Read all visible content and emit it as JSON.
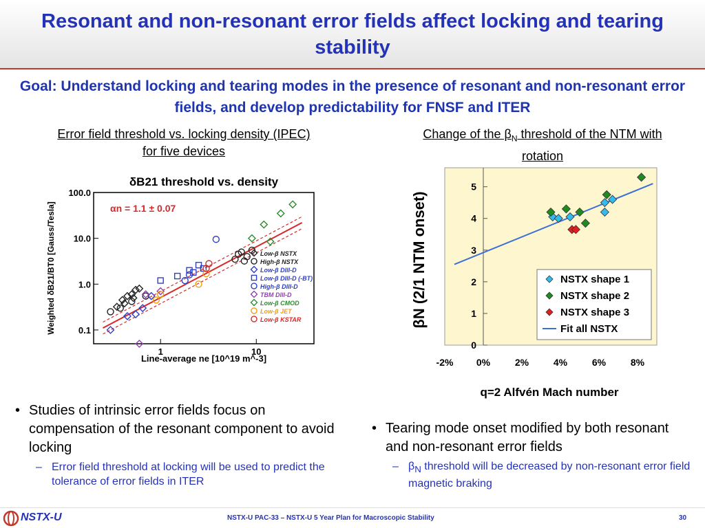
{
  "slide": {
    "title": "Resonant and non-resonant error fields affect locking and tearing stability",
    "goal": "Goal: Understand locking and tearing modes in the presence of resonant and non-resonant error fields, and develop predictability for FNSF and ITER"
  },
  "left": {
    "caption": "Error field threshold vs. locking density (IPEC) for five devices",
    "bullet": "Studies of intrinsic error fields focus on compensation of the resonant component to avoid locking",
    "sub_bullet": "Error field threshold at locking will be used to predict the tolerance of error fields in ITER"
  },
  "right": {
    "caption_prefix": "Change of the β",
    "caption_sub": "N",
    "caption_suffix": " threshold of the NTM with rotation",
    "bullet": "Tearing mode onset modified by both resonant and non-resonant error fields",
    "sub_prefix": "β",
    "sub_sub": "N",
    "sub_suffix": " threshold will be decreased by non-resonant error field magnetic braking"
  },
  "bullet_glyph": "•",
  "dash_glyph": "–",
  "footer": {
    "logo": "NSTX-U",
    "text": "NSTX-U PAC-33 – NSTX-U 5 Year Plan for Macroscopic Stability",
    "page": "30"
  },
  "chart_data": [
    {
      "type": "scatter",
      "scale": "log-log",
      "title": "δB21 threshold vs. density",
      "annotation": "αn = 1.1 ± 0.07",
      "xlabel": "Line-average ne [10^19 m^-3]",
      "ylabel": "Weighted δB21/BT0 [Gauss/Tesla]",
      "xlim": [
        0.2,
        40
      ],
      "ylim": [
        0.05,
        100
      ],
      "x_ticks": [
        "1",
        "10"
      ],
      "y_ticks": [
        "100.0",
        "10.0",
        "1.0",
        "0.1"
      ],
      "fit": {
        "x": [
          0.25,
          30
        ],
        "y": [
          0.11,
          22
        ]
      },
      "series": [
        {
          "name": "Low-β NSTX",
          "marker": "diamond-open",
          "color": "#222222",
          "points": [
            [
              0.35,
              0.32
            ],
            [
              0.4,
              0.45
            ],
            [
              0.45,
              0.55
            ],
            [
              0.5,
              0.6
            ],
            [
              0.55,
              0.75
            ],
            [
              0.6,
              0.8
            ],
            [
              0.42,
              0.38
            ],
            [
              0.52,
              0.5
            ]
          ]
        },
        {
          "name": "High-β NSTX",
          "marker": "circle-open",
          "color": "#222222",
          "points": [
            [
              0.3,
              0.25
            ],
            [
              0.38,
              0.3
            ],
            [
              0.5,
              0.42
            ],
            [
              0.7,
              0.55
            ],
            [
              6,
              3.5
            ],
            [
              6.5,
              4.5
            ],
            [
              7,
              5.0
            ],
            [
              7.5,
              3.2
            ],
            [
              8,
              4.0
            ],
            [
              9,
              5.5
            ]
          ]
        },
        {
          "name": "Low-β DIII-D",
          "marker": "diamond-open",
          "color": "#2e3fc8",
          "points": [
            [
              0.3,
              0.1
            ],
            [
              0.45,
              0.2
            ],
            [
              0.55,
              0.22
            ],
            [
              0.65,
              0.3
            ],
            [
              0.8,
              0.55
            ]
          ]
        },
        {
          "name": "Low-β DIII-D (-BT)",
          "marker": "square-open",
          "color": "#2e3fc8",
          "points": [
            [
              1.0,
              1.2
            ],
            [
              1.5,
              1.5
            ],
            [
              2.0,
              2.0
            ],
            [
              2.2,
              1.8
            ],
            [
              2.5,
              2.6
            ],
            [
              2.8,
              2.2
            ]
          ]
        },
        {
          "name": "High-β DIII-D",
          "marker": "circle-open",
          "color": "#2e3fc8",
          "points": [
            [
              3.8,
              9.5
            ],
            [
              1.8,
              1.2
            ],
            [
              2.0,
              1.6
            ]
          ]
        },
        {
          "name": "TBM DIII-D",
          "marker": "diamond-open",
          "color": "#8e44ad",
          "points": [
            [
              0.6,
              0.05
            ],
            [
              0.7,
              0.6
            ],
            [
              1.0,
              0.7
            ]
          ]
        },
        {
          "name": "Low-β CMOD",
          "marker": "diamond-open",
          "color": "#2e8b2e",
          "points": [
            [
              9,
              10
            ],
            [
              12,
              20
            ],
            [
              18,
              35
            ],
            [
              24,
              55
            ],
            [
              14,
              8.5
            ]
          ]
        },
        {
          "name": "Low-β JET",
          "marker": "circle-open",
          "color": "#f39c12",
          "points": [
            [
              0.9,
              0.45
            ],
            [
              1.0,
              0.6
            ],
            [
              2.5,
              1.0
            ],
            [
              3.0,
              1.7
            ]
          ]
        },
        {
          "name": "Low-β KSTAR",
          "marker": "circle-open",
          "color": "#d62828",
          "points": [
            [
              3.0,
              2.2
            ],
            [
              3.2,
              2.8
            ]
          ]
        }
      ]
    },
    {
      "type": "scatter",
      "xlabel": "q=2 Alfvén Mach number",
      "ylabel": "βN (2/1 NTM onset)",
      "xlim": [
        -2,
        9
      ],
      "ylim": [
        0,
        5.6
      ],
      "x_ticks": [
        "-2%",
        "0%",
        "2%",
        "4%",
        "6%",
        "8%"
      ],
      "y_ticks": [
        "0",
        "1",
        "2",
        "3",
        "4",
        "5"
      ],
      "series": [
        {
          "name": "NSTX shape 1",
          "color": "#33bbee",
          "points": [
            [
              3.6,
              4.05
            ],
            [
              3.9,
              4.0
            ],
            [
              4.5,
              4.05
            ],
            [
              6.3,
              4.2
            ],
            [
              6.3,
              4.5
            ],
            [
              6.7,
              4.6
            ]
          ]
        },
        {
          "name": "NSTX shape 2",
          "color": "#1f8a1f",
          "points": [
            [
              3.5,
              4.2
            ],
            [
              4.3,
              4.3
            ],
            [
              5.0,
              4.2
            ],
            [
              5.3,
              3.85
            ],
            [
              6.4,
              4.75
            ],
            [
              8.2,
              5.3
            ]
          ]
        },
        {
          "name": "NSTX shape 3",
          "color": "#e02020",
          "points": [
            [
              4.6,
              3.65
            ],
            [
              4.8,
              3.65
            ]
          ]
        },
        {
          "name": "Fit all NSTX",
          "type": "line",
          "color": "#3a6fd8",
          "points": [
            [
              -1.5,
              2.55
            ],
            [
              8.8,
              5.1
            ]
          ]
        }
      ]
    }
  ]
}
